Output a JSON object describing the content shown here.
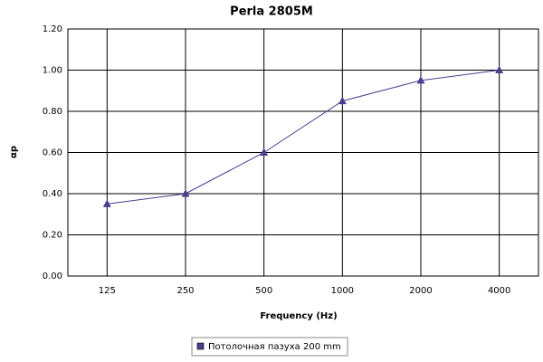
{
  "chart_data": {
    "type": "line",
    "title": "Perla 2805M",
    "x_label": "Frequency (Hz)",
    "y_label": "αp",
    "categories": [
      "125",
      "250",
      "500",
      "1000",
      "2000",
      "4000"
    ],
    "series": [
      {
        "name": "Потолочная пазуха 200 mm",
        "color": "#4b3f8f",
        "values": [
          0.35,
          0.4,
          0.6,
          0.85,
          0.95,
          1.0
        ]
      }
    ],
    "ylim": [
      0,
      1.2
    ],
    "yticks": [
      {
        "value": 0,
        "label": "0.00"
      },
      {
        "value": 0.2,
        "label": "0.20"
      },
      {
        "value": 0.4,
        "label": "0.40"
      },
      {
        "value": 0.6,
        "label": "0.60"
      },
      {
        "value": 0.8,
        "label": "0.80"
      },
      {
        "value": 1.0,
        "label": "1.00"
      },
      {
        "value": 1.2,
        "label": "1.20"
      }
    ],
    "grid": true
  }
}
